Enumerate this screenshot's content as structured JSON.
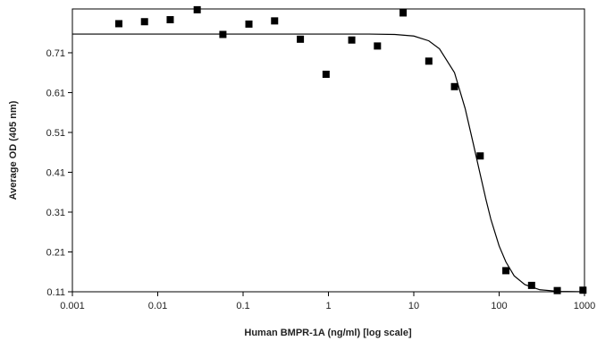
{
  "chart_data": {
    "type": "scatter",
    "title": "",
    "xlabel": "Human BMPR-1A (ng/ml) [log scale]",
    "ylabel": "Average OD (405 nm)",
    "x_scale": "log",
    "xlim": [
      0.001,
      1000
    ],
    "ylim": [
      0.11,
      0.82
    ],
    "x_ticks": [
      0.001,
      0.01,
      0.1,
      1,
      10,
      100,
      1000
    ],
    "x_tick_labels": [
      "0.001",
      "0.01",
      "0.1",
      "1",
      "10",
      "100",
      "1000"
    ],
    "y_ticks": [
      0.11,
      0.21,
      0.31,
      0.41,
      0.51,
      0.61,
      0.71
    ],
    "y_tick_labels": [
      "0.11",
      "0.21",
      "0.31",
      "0.41",
      "0.51",
      "0.61",
      "0.71"
    ],
    "grid": false,
    "series": [
      {
        "marker": "square",
        "color": "#000000",
        "x": [
          0.0035,
          0.007,
          0.014,
          0.029,
          0.058,
          0.117,
          0.234,
          0.469,
          0.938,
          1.875,
          3.75,
          7.5,
          15,
          30,
          60,
          120,
          240,
          480,
          960
        ],
        "y": [
          0.783,
          0.788,
          0.793,
          0.818,
          0.756,
          0.782,
          0.79,
          0.744,
          0.656,
          0.742,
          0.727,
          0.81,
          0.689,
          0.625,
          0.451,
          0.163,
          0.126,
          0.113,
          0.114
        ]
      }
    ],
    "fit_curve": {
      "color": "#000000",
      "x": [
        0.001,
        0.01,
        0.1,
        1,
        3,
        6,
        10,
        15,
        20,
        30,
        40,
        50,
        60,
        70,
        80,
        100,
        120,
        150,
        200,
        300,
        500,
        1000
      ],
      "y": [
        0.757,
        0.757,
        0.757,
        0.757,
        0.757,
        0.756,
        0.752,
        0.74,
        0.72,
        0.66,
        0.57,
        0.48,
        0.405,
        0.342,
        0.292,
        0.225,
        0.185,
        0.15,
        0.128,
        0.115,
        0.111,
        0.11
      ]
    }
  }
}
